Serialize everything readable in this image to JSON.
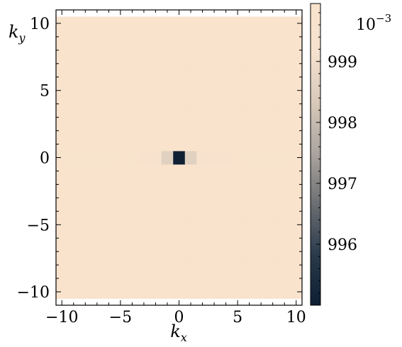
{
  "chart_data": {
    "type": "heatmap",
    "xlabel": "k",
    "xlabel_subscript": "x",
    "ylabel": "k",
    "ylabel_subscript": "y",
    "xlim": [
      -10.5,
      10.5
    ],
    "ylim": [
      -11,
      11
    ],
    "x_ticks": [
      -10,
      -5,
      0,
      5,
      10
    ],
    "x_tick_labels": [
      "−10",
      "−5",
      "0",
      "5",
      "10"
    ],
    "y_ticks": [
      -10,
      -5,
      0,
      5,
      10
    ],
    "y_tick_labels": [
      "−10",
      "−5",
      "0",
      "5",
      "10"
    ],
    "colorbar": {
      "range": [
        995.0,
        999.95
      ],
      "ticks": [
        996,
        997,
        998,
        999
      ],
      "tick_labels": [
        "996",
        "997",
        "998",
        "999"
      ],
      "scale_label": "10",
      "scale_exponent": "−3",
      "colormap": [
        "#0d1e33",
        "#2a3a4c",
        "#6b6e72",
        "#aaa49e",
        "#d6c8b9",
        "#f5e1ce",
        "#f9e3cd"
      ]
    },
    "grid": {
      "x_start": -10,
      "x_end": 10,
      "x_step": 1,
      "y_start": -10,
      "y_end": 10,
      "y_step": 1,
      "default_value": 999.92,
      "cells": [
        {
          "x": 0,
          "y": 0,
          "v": 995.05
        },
        {
          "x": -1,
          "y": 0,
          "v": 998.6
        },
        {
          "x": 1,
          "y": 0,
          "v": 998.6
        },
        {
          "x": -2,
          "y": 0,
          "v": 999.6
        },
        {
          "x": 2,
          "y": 0,
          "v": 999.6
        },
        {
          "x": -3,
          "y": 0,
          "v": 999.65
        },
        {
          "x": 3,
          "y": 0,
          "v": 999.7
        },
        {
          "x": -4,
          "y": 0,
          "v": 999.75
        },
        {
          "x": 4,
          "y": 0,
          "v": 999.65
        },
        {
          "x": -5,
          "y": 0,
          "v": 999.98
        },
        {
          "x": 5,
          "y": 0,
          "v": 999.98
        },
        {
          "x": -6,
          "y": 0,
          "v": 999.75
        },
        {
          "x": 6,
          "y": 0,
          "v": 999.78
        },
        {
          "x": -7,
          "y": 0,
          "v": 999.8
        },
        {
          "x": 7,
          "y": 0,
          "v": 999.75
        },
        {
          "x": -8,
          "y": 0,
          "v": 999.8
        },
        {
          "x": 8,
          "y": 0,
          "v": 999.82
        },
        {
          "x": -9,
          "y": 0,
          "v": 999.84
        },
        {
          "x": 9,
          "y": 0,
          "v": 999.82
        },
        {
          "x": -10,
          "y": 0,
          "v": 999.84
        },
        {
          "x": 10,
          "y": 0,
          "v": 999.85
        },
        {
          "x": 0,
          "y": 1,
          "v": 999.88
        },
        {
          "x": -1,
          "y": 1,
          "v": 999.97
        },
        {
          "x": 1,
          "y": 1,
          "v": 999.86
        },
        {
          "x": 0,
          "y": -1,
          "v": 999.88
        },
        {
          "x": -1,
          "y": -1,
          "v": 999.86
        },
        {
          "x": 1,
          "y": -1,
          "v": 999.96
        },
        {
          "x": -6,
          "y": -3,
          "v": 999.86
        },
        {
          "x": -4,
          "y": -3,
          "v": 999.86
        },
        {
          "x": -3,
          "y": -4,
          "v": 999.97
        },
        {
          "x": -5,
          "y": -5,
          "v": 999.97
        },
        {
          "x": -6,
          "y": -5,
          "v": 999.95
        },
        {
          "x": 4,
          "y": -4,
          "v": 999.97
        },
        {
          "x": 5,
          "y": -4,
          "v": 999.96
        },
        {
          "x": 4,
          "y": 6,
          "v": 999.97
        },
        {
          "x": 5,
          "y": 6,
          "v": 999.97
        },
        {
          "x": -5,
          "y": 5,
          "v": 999.95
        },
        {
          "x": -4,
          "y": 5,
          "v": 999.96
        },
        {
          "x": 3,
          "y": 4,
          "v": 999.86
        },
        {
          "x": -3,
          "y": 3,
          "v": 999.87
        },
        {
          "x": 6,
          "y": 2,
          "v": 999.86
        },
        {
          "x": -7,
          "y": 2,
          "v": 999.87
        },
        {
          "x": 2,
          "y": -2,
          "v": 999.87
        },
        {
          "x": -2,
          "y": 2,
          "v": 999.87
        },
        {
          "x": 7,
          "y": -2,
          "v": 999.87
        },
        {
          "x": -8,
          "y": -2,
          "v": 999.87
        },
        {
          "x": 8,
          "y": 4,
          "v": 999.87
        },
        {
          "x": -9,
          "y": 7,
          "v": 999.87
        },
        {
          "x": 9,
          "y": -7,
          "v": 999.87
        },
        {
          "x": -7,
          "y": -8,
          "v": 999.87
        },
        {
          "x": 6,
          "y": 8,
          "v": 999.87
        },
        {
          "x": -6,
          "y": 9,
          "v": 999.87
        },
        {
          "x": 2,
          "y": -9,
          "v": 999.87
        },
        {
          "x": -2,
          "y": -7,
          "v": 999.88
        },
        {
          "x": 3,
          "y": 7,
          "v": 999.88
        },
        {
          "x": -10,
          "y": 4,
          "v": 999.88
        },
        {
          "x": 10,
          "y": -3,
          "v": 999.88
        },
        {
          "x": 1,
          "y": 9,
          "v": 999.88
        },
        {
          "x": -1,
          "y": -10,
          "v": 999.88
        },
        {
          "x": 7,
          "y": 10,
          "v": 999.88
        },
        {
          "x": -8,
          "y": -10,
          "v": 999.88
        }
      ]
    }
  }
}
